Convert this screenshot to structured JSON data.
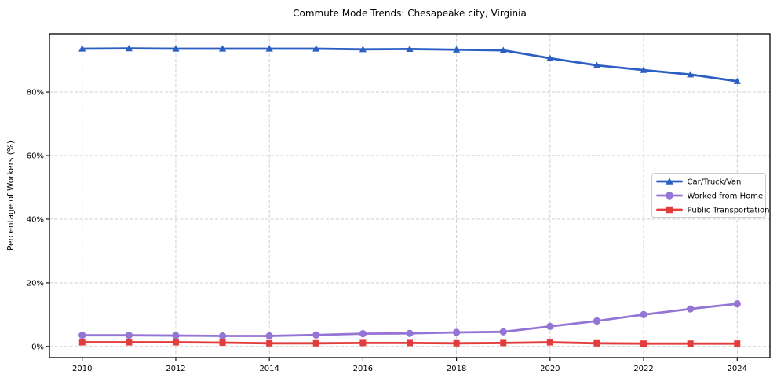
{
  "title": "Commute Mode Trends: Chesapeake city, Virginia",
  "chart_data": {
    "type": "line",
    "title": "Commute Mode Trends: Chesapeake city, Virginia",
    "xlabel": "",
    "ylabel": "Percentage of Workers (%)",
    "x": [
      2010,
      2011,
      2012,
      2013,
      2014,
      2015,
      2016,
      2017,
      2018,
      2019,
      2020,
      2021,
      2022,
      2023,
      2024
    ],
    "series": [
      {
        "name": "Car/Truck/Van",
        "color": "#2b5fc4",
        "marker": "triangle",
        "values": [
          93.6,
          93.7,
          93.6,
          93.6,
          93.6,
          93.6,
          93.4,
          93.5,
          93.3,
          93.1,
          90.6,
          88.4,
          86.9,
          85.5,
          83.4
        ]
      },
      {
        "name": "Worked from Home",
        "color": "#9474d4",
        "marker": "circle",
        "values": [
          3.5,
          3.5,
          3.4,
          3.3,
          3.3,
          3.6,
          4.0,
          4.1,
          4.4,
          4.6,
          6.3,
          8.0,
          10.0,
          11.8,
          13.4
        ]
      },
      {
        "name": "Public Transportation",
        "color": "#e23c3c",
        "marker": "square",
        "values": [
          1.3,
          1.3,
          1.3,
          1.2,
          1.0,
          1.0,
          1.1,
          1.1,
          1.0,
          1.1,
          1.3,
          1.0,
          0.9,
          0.9,
          0.9
        ]
      }
    ],
    "xticks": {
      "values": [
        2010,
        2012,
        2014,
        2016,
        2018,
        2020,
        2022,
        2024
      ],
      "labels": [
        "2010",
        "2012",
        "2014",
        "2016",
        "2018",
        "2020",
        "2022",
        "2024"
      ]
    },
    "yticks": {
      "values": [
        0,
        20,
        40,
        60,
        80
      ],
      "labels": [
        "0%",
        "20%",
        "40%",
        "60%",
        "80%"
      ]
    },
    "xlim": [
      2009.3,
      2024.7
    ],
    "ylim": [
      -3.5,
      98.3
    ],
    "grid": true,
    "grid_style": "dashed",
    "legend": {
      "position": "center-right",
      "entries": [
        "Car/Truck/Van",
        "Worked from Home",
        "Public Transportation"
      ]
    },
    "colors": {
      "grid": "#c9c9c9",
      "frame": "#000000",
      "legend_border": "#cccccc",
      "background": "#ffffff"
    }
  }
}
